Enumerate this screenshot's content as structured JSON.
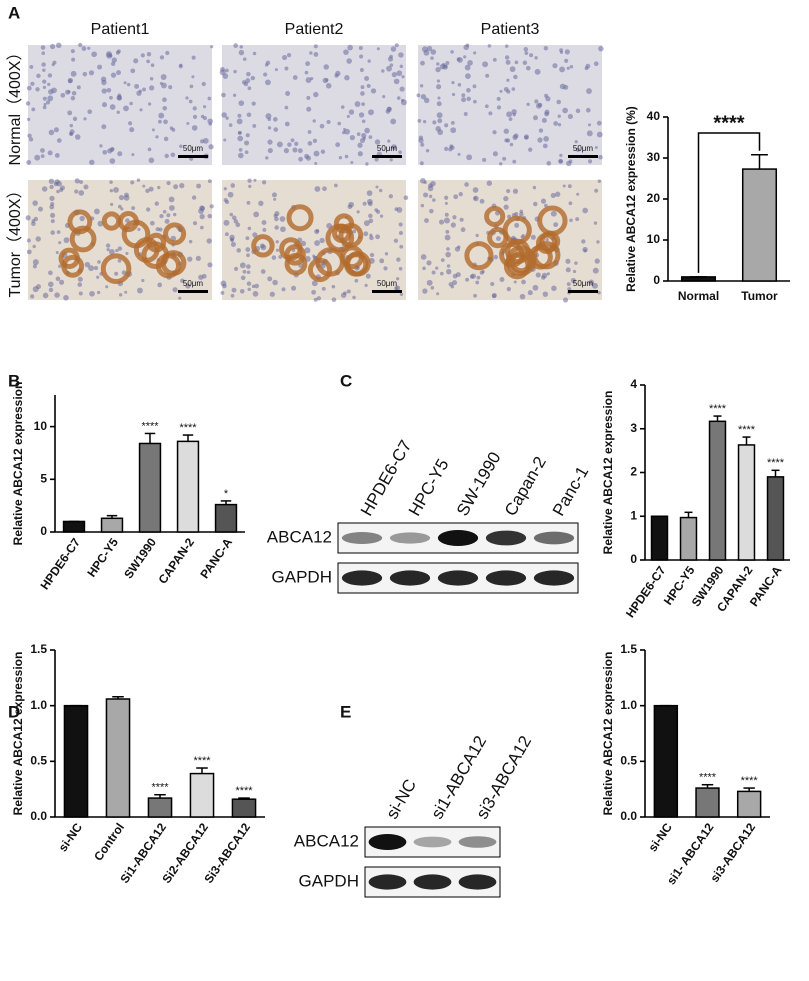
{
  "panels": [
    "A",
    "B",
    "C",
    "D",
    "E"
  ],
  "patients": [
    "Patient1",
    "Patient2",
    "Patient3"
  ],
  "row_labels": [
    "Normal（400X）",
    "Tumor（400X）"
  ],
  "scale_bar": "50μm",
  "blots": [
    {
      "lanes": [
        "HPDE6-C7",
        "HPC-Y5",
        "SW-1990",
        "Capan-2",
        "Panc-1"
      ],
      "rows": [
        "ABCA12",
        "GAPDH"
      ]
    },
    {
      "lanes": [
        "si-NC",
        "si1-ABCA12",
        "si3-ABCA12"
      ],
      "rows": [
        "ABCA12",
        "GAPDH"
      ]
    }
  ],
  "chart_data": [
    {
      "type": "bar",
      "ylabel": "Relative ABCA12 expression (%)",
      "categories": [
        "Normal",
        "Tumor"
      ],
      "values": [
        1,
        27.3
      ],
      "errors": [
        0,
        3.5
      ],
      "colors": [
        "#111111",
        "#a8a8a8"
      ],
      "ylim": [
        0,
        40
      ],
      "yticks": [
        0,
        10,
        20,
        30,
        40
      ],
      "annotation": "****"
    },
    {
      "type": "bar",
      "ylabel": "Relative ABCA12 expression",
      "categories": [
        "HPDE6-C7",
        "HPC-Y5",
        "SW1990",
        "CAPAN-2",
        "PANC-A"
      ],
      "values": [
        1,
        1.3,
        8.4,
        8.6,
        2.6
      ],
      "errors": [
        0,
        0.25,
        0.95,
        0.6,
        0.35
      ],
      "colors": [
        "#111111",
        "#a8a8a8",
        "#777777",
        "#dcdcdc",
        "#555555"
      ],
      "ylim": [
        0,
        13
      ],
      "yticks": [
        0,
        5,
        10
      ],
      "significance": [
        null,
        null,
        "****",
        "****",
        "*"
      ]
    },
    {
      "type": "bar",
      "ylabel": "Relative ABCA12 expression",
      "categories": [
        "HPDE6-C7",
        "HPC-Y5",
        "SW1990",
        "CAPAN-2",
        "PANC-A"
      ],
      "values": [
        1,
        0.97,
        3.17,
        2.63,
        1.9
      ],
      "errors": [
        0,
        0.12,
        0.12,
        0.18,
        0.15
      ],
      "colors": [
        "#111111",
        "#a8a8a8",
        "#777777",
        "#dcdcdc",
        "#555555"
      ],
      "ylim": [
        0,
        4
      ],
      "yticks": [
        0,
        1,
        2,
        3,
        4
      ],
      "significance": [
        null,
        null,
        "****",
        "****",
        "****"
      ]
    },
    {
      "type": "bar",
      "ylabel": "Relative ABCA12 expression",
      "categories": [
        "si-NC",
        "Control",
        "Si1-ABCA12",
        "Si2-ABCA12",
        "Si3-ABCA12"
      ],
      "values": [
        1,
        1.06,
        0.17,
        0.39,
        0.16
      ],
      "errors": [
        0,
        0.02,
        0.03,
        0.05,
        0.01
      ],
      "colors": [
        "#111111",
        "#a8a8a8",
        "#777777",
        "#dcdcdc",
        "#555555"
      ],
      "ylim": [
        0,
        1.5
      ],
      "yticks": [
        {
          "value": 0,
          "label": "0.0"
        },
        {
          "value": 0.5,
          "label": "0.5"
        },
        {
          "value": 1,
          "label": "1.0"
        },
        {
          "value": 1.5,
          "label": "1.5"
        }
      ],
      "significance": [
        null,
        null,
        "****",
        "****",
        "****"
      ]
    },
    {
      "type": "bar",
      "ylabel": "Relative ABCA12 expression",
      "categories": [
        "si-NC",
        "si1- ABCA12",
        "si3-ABCA12"
      ],
      "values": [
        1,
        0.26,
        0.23
      ],
      "errors": [
        0,
        0.03,
        0.03
      ],
      "colors": [
        "#111111",
        "#777777",
        "#a8a8a8"
      ],
      "ylim": [
        0,
        1.5
      ],
      "yticks": [
        {
          "value": 0,
          "label": "0.0"
        },
        {
          "value": 0.5,
          "label": "0.5"
        },
        {
          "value": 1,
          "label": "1.0"
        },
        {
          "value": 1.5,
          "label": "1.5"
        }
      ],
      "significance": [
        null,
        "****",
        "****"
      ]
    }
  ]
}
